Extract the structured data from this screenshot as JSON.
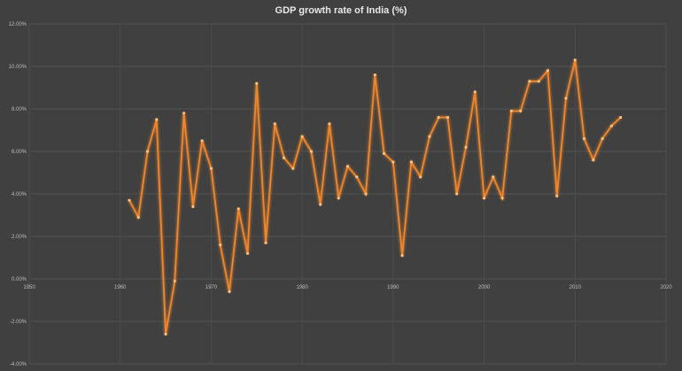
{
  "chart_data": {
    "type": "line",
    "title": "GDP growth rate of India (%)",
    "xlabel": "",
    "ylabel": "",
    "xlim": [
      1950,
      2020
    ],
    "ylim": [
      -4,
      12
    ],
    "grid": true,
    "legend": "none",
    "x_ticks": [
      "1950",
      "1960",
      "1970",
      "1980",
      "1990",
      "2000",
      "2010",
      "2020"
    ],
    "y_ticks": [
      "-4.00%",
      "-2.00%",
      "0.00%",
      "2.00%",
      "4.00%",
      "6.00%",
      "8.00%",
      "10.00%",
      "12.00%"
    ],
    "line_color": "#f0862c",
    "background_color": "#404040",
    "series": [
      {
        "name": "GDP growth rate",
        "x": [
          1961,
          1962,
          1963,
          1964,
          1965,
          1966,
          1967,
          1968,
          1969,
          1970,
          1971,
          1972,
          1973,
          1974,
          1975,
          1976,
          1977,
          1978,
          1979,
          1980,
          1981,
          1982,
          1983,
          1984,
          1985,
          1986,
          1987,
          1988,
          1989,
          1990,
          1991,
          1992,
          1993,
          1994,
          1995,
          1996,
          1997,
          1998,
          1999,
          2000,
          2001,
          2002,
          2003,
          2004,
          2005,
          2006,
          2007,
          2008,
          2009,
          2010,
          2011,
          2012,
          2013,
          2014,
          2015
        ],
        "values": [
          3.7,
          2.9,
          6.0,
          7.5,
          -2.6,
          -0.1,
          7.8,
          3.4,
          6.5,
          5.2,
          1.6,
          -0.6,
          3.3,
          1.2,
          9.2,
          1.7,
          7.3,
          5.7,
          5.2,
          6.7,
          6.0,
          3.5,
          7.3,
          3.8,
          5.3,
          4.8,
          4.0,
          9.6,
          5.9,
          5.5,
          1.1,
          5.5,
          4.8,
          6.7,
          7.6,
          7.6,
          4.0,
          6.2,
          8.8,
          3.8,
          4.8,
          3.8,
          7.9,
          7.9,
          9.3,
          9.3,
          9.8,
          3.9,
          8.5,
          10.3,
          6.6,
          5.6,
          6.6,
          7.2,
          7.6
        ]
      }
    ]
  }
}
